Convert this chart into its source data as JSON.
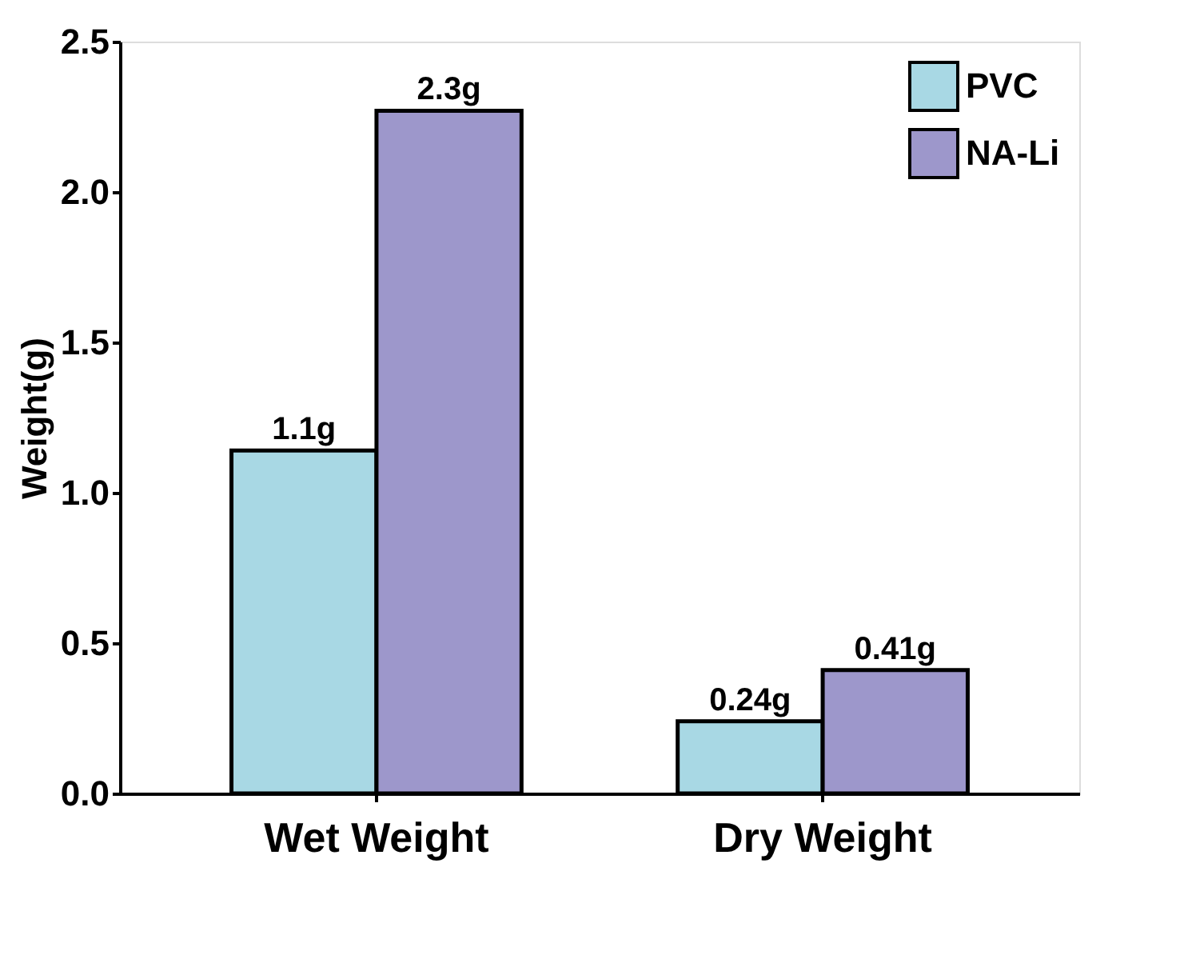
{
  "chart_data": {
    "type": "bar",
    "ylabel": "Weight(g)",
    "categories": [
      "Wet Weight",
      "Dry Weight"
    ],
    "series": [
      {
        "name": "PVC",
        "color": "#a8d8e4",
        "values": [
          1.14,
          0.24
        ],
        "value_labels": [
          "1.1g",
          "0.24g"
        ]
      },
      {
        "name": "NA-Li",
        "color": "#9d97cb",
        "values": [
          2.27,
          0.41
        ],
        "value_labels": [
          "2.3g",
          "0.41g"
        ]
      }
    ],
    "ylim": [
      0,
      2.5
    ],
    "yticks": [
      {
        "value": 0,
        "label": "0.0"
      },
      {
        "value": 0.5,
        "label": "0.5"
      },
      {
        "value": 1,
        "label": "1.0"
      },
      {
        "value": 1.5,
        "label": "1.5"
      },
      {
        "value": 2,
        "label": "2.0"
      },
      {
        "value": 2.5,
        "label": "2.5"
      }
    ],
    "grid": false,
    "legend": "top right"
  }
}
